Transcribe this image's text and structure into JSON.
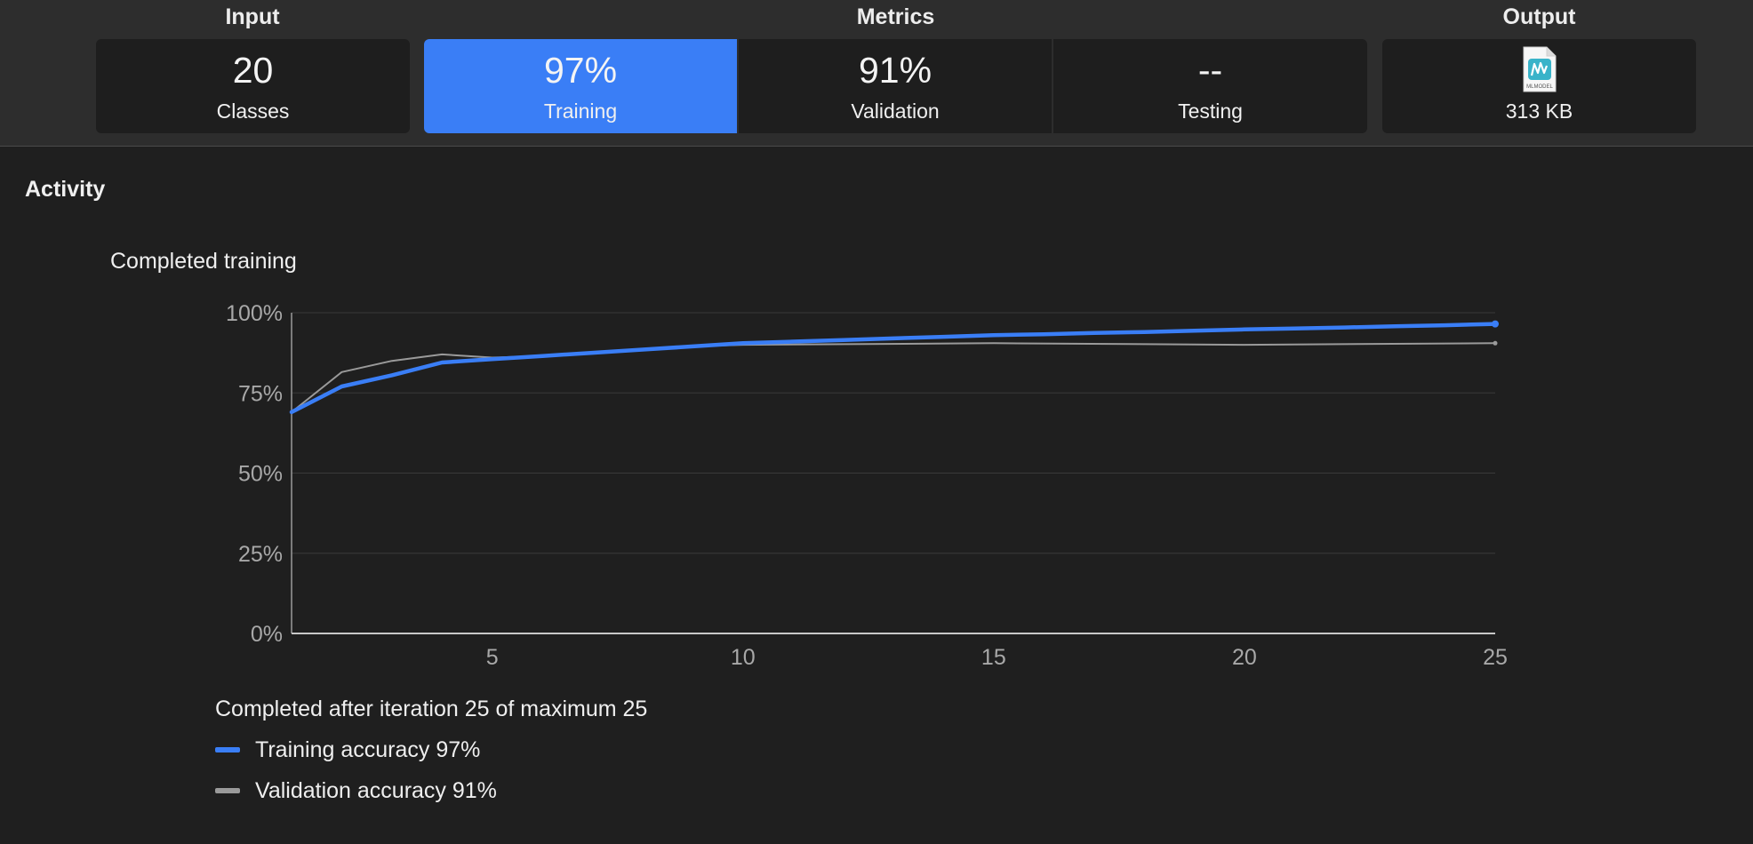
{
  "header": {
    "input_label": "Input",
    "metrics_label": "Metrics",
    "output_label": "Output"
  },
  "cards": {
    "classes": {
      "value": "20",
      "caption": "Classes"
    },
    "training": {
      "value": "97%",
      "caption": "Training"
    },
    "validation": {
      "value": "91%",
      "caption": "Validation"
    },
    "testing": {
      "value": "--",
      "caption": "Testing"
    },
    "output": {
      "icon": "mlmodel-file-icon",
      "icon_text": "MLMODEL",
      "caption": "313 KB"
    }
  },
  "activity": {
    "title": "Activity",
    "chart_title": "Completed training",
    "status": "Completed after iteration 25 of maximum 25",
    "legend": [
      {
        "label": "Training accuracy 97%",
        "color": "#3a7ef6"
      },
      {
        "label": "Validation accuracy 91%",
        "color": "#9a9a9a"
      }
    ]
  },
  "colors": {
    "accent": "#3a7ef6",
    "validation_line": "#9a9a9a",
    "background": "#1f1f1f",
    "topbar": "#2d2d2d"
  },
  "chart_data": {
    "type": "line",
    "title": "Completed training",
    "xlabel": "",
    "ylabel": "",
    "xlim": [
      1,
      25
    ],
    "ylim": [
      0,
      100
    ],
    "x_ticks": [
      5,
      10,
      15,
      20,
      25
    ],
    "y_ticks": [
      0,
      25,
      50,
      75,
      100
    ],
    "y_tick_labels": [
      "0%",
      "25%",
      "50%",
      "75%",
      "100%"
    ],
    "grid": true,
    "series": [
      {
        "name": "Training accuracy",
        "color": "#3a7ef6",
        "x": [
          1,
          2,
          3,
          4,
          5,
          6,
          7,
          8,
          9,
          10,
          11,
          12,
          13,
          14,
          15,
          16,
          17,
          18,
          19,
          20,
          21,
          22,
          23,
          24,
          25
        ],
        "values": [
          69,
          77,
          80.5,
          84.5,
          85.5,
          86.5,
          87.5,
          88.5,
          89.5,
          90.5,
          91,
          91.5,
          92,
          92.5,
          93,
          93.3,
          93.7,
          94,
          94.4,
          94.8,
          95.1,
          95.4,
          95.8,
          96.1,
          96.5
        ]
      },
      {
        "name": "Validation accuracy",
        "color": "#9a9a9a",
        "x": [
          1,
          2,
          3,
          4,
          5,
          6,
          7,
          8,
          9,
          10,
          15,
          20,
          25
        ],
        "values": [
          69,
          81.5,
          85,
          87,
          86,
          86.5,
          87.5,
          88.5,
          89.5,
          90,
          90.5,
          90,
          90.5
        ]
      }
    ]
  }
}
